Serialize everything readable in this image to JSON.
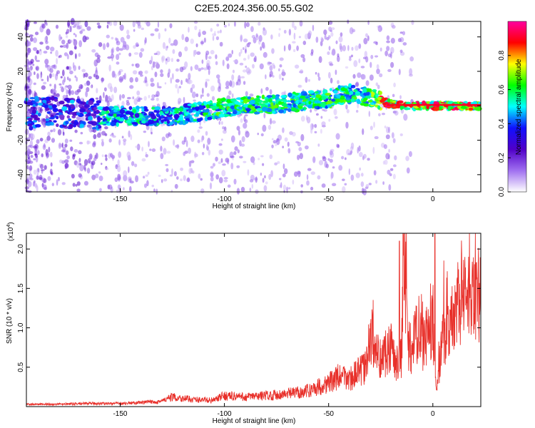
{
  "figure_title": "C2E5.2024.356.00.55.G02",
  "colors": {
    "snr_line": "#e8302a",
    "axes": "#000000"
  },
  "chart_data": [
    {
      "type": "heatmap",
      "title": "C2E5.2024.356.00.55.G02",
      "xlabel": "Height of straight line (km)",
      "ylabel": "Frequency (Hz)",
      "xlim": [
        -195,
        23
      ],
      "ylim": [
        -50,
        49
      ],
      "xticks": [
        -150,
        -100,
        -50,
        0
      ],
      "yticks": [
        -40,
        -20,
        0,
        20,
        40
      ],
      "ridge": {
        "x": [
          -195,
          -170,
          -155,
          -140,
          -125,
          -110,
          -100,
          -90,
          -75,
          -60,
          -50,
          -45,
          -40,
          -35,
          -30,
          -25,
          -20,
          -10,
          0,
          10,
          23
        ],
        "y": [
          -4,
          -4,
          -6,
          -6,
          -6,
          -3,
          -1,
          0,
          1,
          3,
          4,
          6,
          7,
          6,
          5,
          3,
          1,
          0,
          0,
          0,
          0
        ]
      },
      "colorbar": {
        "label": "Normalized spectral amplitude",
        "range": [
          0,
          1
        ],
        "ticks": [
          "0.0",
          "0.2",
          "0.4",
          "0.6",
          "0.8"
        ],
        "tick_values": [
          0,
          0.2,
          0.4,
          0.6,
          0.8
        ],
        "colormap": [
          "#ffffff",
          "#a070f0",
          "#5000c8",
          "#1010ff",
          "#00ffff",
          "#00ff00",
          "#ffff00",
          "#ff0000",
          "#ff00a0"
        ]
      }
    },
    {
      "type": "line",
      "xlabel": "Height of straight line (km)",
      "ylabel": "SNR (10 * v/v)",
      "y_scale_note": "(x10",
      "y_scale_exp": "4",
      "xlim": [
        -195,
        23
      ],
      "ylim": [
        0,
        2.2
      ],
      "xticks": [
        -150,
        -100,
        -50,
        0
      ],
      "yticks": [
        0.5,
        1.0,
        1.5,
        2.0
      ],
      "ytick_labels": [
        "0.5",
        "1.0",
        "1.5",
        "2.0"
      ],
      "series": [
        {
          "x": [
            -195,
            -180,
            -165,
            -150,
            -140,
            -130,
            -125,
            -115,
            -105,
            -100,
            -90,
            -80,
            -70,
            -60,
            -50,
            -45,
            -40,
            -35,
            -32,
            -30,
            -28,
            -25,
            -22,
            -20,
            -18,
            -16,
            -15,
            -14,
            -12,
            -10,
            -8,
            -5,
            -3,
            -1,
            0,
            1,
            2,
            3,
            5,
            8,
            10,
            12,
            15,
            18,
            20,
            23
          ],
          "y": [
            0.03,
            0.03,
            0.04,
            0.04,
            0.05,
            0.07,
            0.12,
            0.09,
            0.08,
            0.14,
            0.12,
            0.14,
            0.16,
            0.2,
            0.3,
            0.38,
            0.35,
            0.45,
            0.5,
            0.9,
            0.75,
            0.6,
            0.7,
            0.8,
            0.55,
            0.6,
            0.65,
            2.1,
            0.8,
            0.7,
            0.9,
            0.8,
            0.9,
            0.95,
            1.2,
            0.3,
            0.2,
            0.5,
            1.0,
            0.9,
            1.1,
            1.3,
            1.4,
            1.25,
            1.35,
            1.5
          ]
        }
      ],
      "spikes": [
        {
          "x": -16,
          "y": 2.1
        },
        {
          "x": 1,
          "y": 2.2
        },
        {
          "x": 11,
          "y": 1.45
        },
        {
          "x": 18,
          "y": 1.55
        }
      ]
    }
  ]
}
